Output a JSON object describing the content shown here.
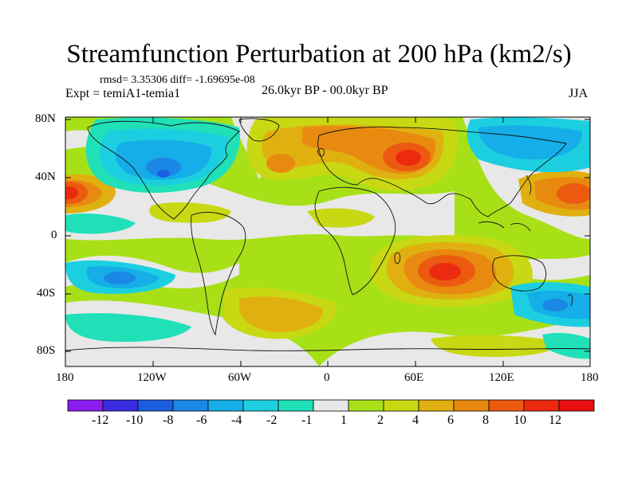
{
  "title": "Streamfunction Perturbation at 200 hPa (km2/s)",
  "stats": "rmsd= 3.35306 diff= -1.69695e-08",
  "experiment": "Expt = temiA1-temia1",
  "period": "26.0kyr BP - 00.0kyr BP",
  "season": "JJA",
  "lat_labels": [
    "80N",
    "40N",
    "0",
    "40S",
    "80S"
  ],
  "lon_labels": [
    "180",
    "120W",
    "60W",
    "0",
    "60E",
    "120E",
    "180"
  ],
  "colorbar": {
    "labels": [
      "-12",
      "-10",
      "-8",
      "-6",
      "-4",
      "-2",
      "-1",
      "1",
      "2",
      "4",
      "6",
      "8",
      "10",
      "12"
    ],
    "colors": [
      "#8a1df0",
      "#3a2ce0",
      "#1d5ee0",
      "#1b87e6",
      "#15aee8",
      "#1ccfe0",
      "#20e0b8",
      "#e8e8e8",
      "#a8e018",
      "#c8d812",
      "#e0b010",
      "#e88a10",
      "#ec5a10",
      "#ec2a10",
      "#e81010"
    ]
  },
  "palette": {
    "neutral": "#e8e8e8",
    "pos1": "#a8e018",
    "pos2": "#c8d812",
    "pos3": "#e0b010",
    "pos4": "#e88a10",
    "pos5": "#ec5a10",
    "pos6": "#ec2a10",
    "neg1": "#20e0b8",
    "neg2": "#1ccfe0",
    "neg3": "#15aee8",
    "neg4": "#1b87e6",
    "neg5": "#1d5ee0"
  }
}
